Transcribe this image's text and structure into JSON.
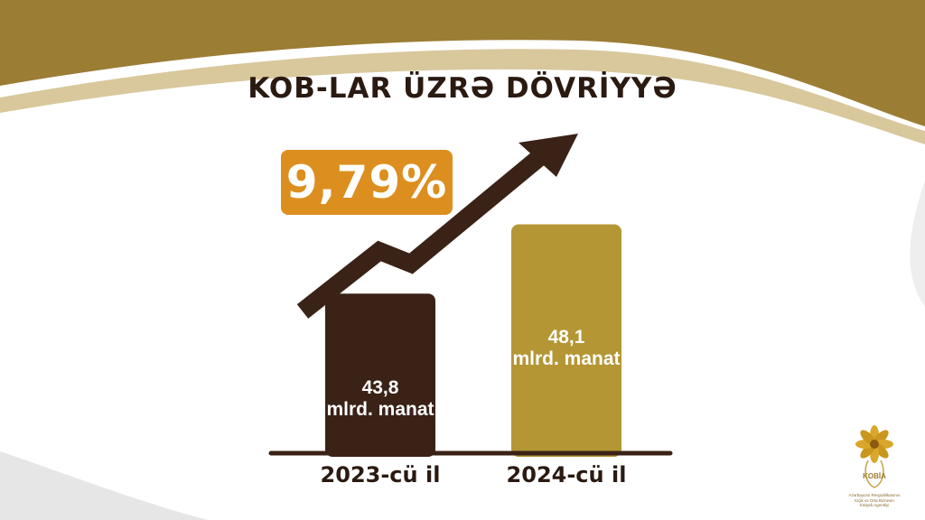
{
  "colors": {
    "dark_brown": "#3a2217",
    "gold": "#b49634",
    "orange": "#dc8f1f",
    "olive_band": "#9b7d34",
    "title_text": "#2a1a12"
  },
  "slide": {
    "title": "KOB-LAR ÜZRƏ DÖVRİYYƏ",
    "growth_badge": "9,79%",
    "trend_arrow_icon": "trend-up-arrow-icon"
  },
  "chart_data": {
    "type": "bar",
    "title": "KOB-LAR ÜZRƏ DÖVRİYYƏ",
    "categories": [
      "2023-cü il",
      "2024-cü il"
    ],
    "values": [
      43.8,
      48.1
    ],
    "value_labels": [
      [
        "43,8",
        "mlrd. manat"
      ],
      [
        "48,1",
        "mlrd. manat"
      ]
    ],
    "unit": "mlrd. manat",
    "growth_percent_label": "9,79%",
    "bar_colors": [
      "#3a2217",
      "#b49634"
    ],
    "ylim": [
      34,
      48.8
    ],
    "grid": false
  },
  "logo": {
    "name": "KOBİA",
    "caption_lines": [
      "Azərbaycan Respublikasının",
      "Kiçik və Orta Biznesin",
      "İnkişafı Agentliyi"
    ],
    "icon": "flower-logo-icon"
  }
}
